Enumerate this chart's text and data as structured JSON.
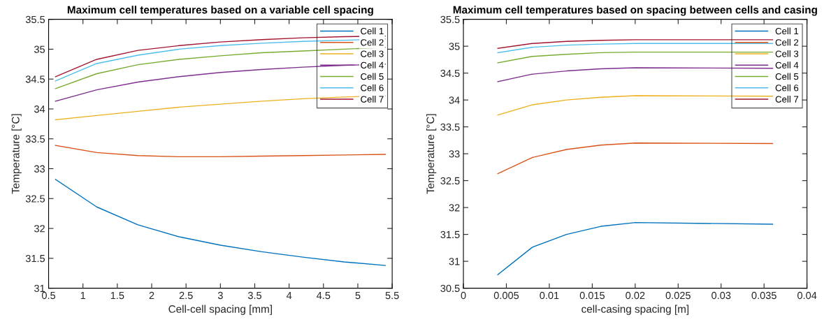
{
  "chart_data": [
    {
      "type": "line",
      "title": "Maximum cell temperatures based on a variable cell spacing",
      "xlabel": "Cell-cell spacing [mm]",
      "ylabel": "Temperature [°C]",
      "x": [
        0.6,
        1.2,
        1.8,
        2.4,
        3.0,
        3.6,
        4.2,
        4.8,
        5.4
      ],
      "series": [
        {
          "name": "Cell 1",
          "color": "#0072bd",
          "values": [
            32.82,
            32.36,
            32.06,
            31.86,
            31.72,
            31.61,
            31.52,
            31.44,
            31.38
          ]
        },
        {
          "name": "Cell 2",
          "color": "#d95319",
          "values": [
            33.39,
            33.27,
            33.22,
            33.2,
            33.2,
            33.21,
            33.22,
            33.23,
            33.24
          ]
        },
        {
          "name": "Cell 3",
          "color": "#edb120",
          "values": [
            33.82,
            33.89,
            33.96,
            34.03,
            34.08,
            34.13,
            34.17,
            34.2,
            34.22
          ]
        },
        {
          "name": "Cell 4",
          "color": "#7e2f8e",
          "values": [
            34.13,
            34.32,
            34.45,
            34.54,
            34.61,
            34.66,
            34.7,
            34.73,
            34.75
          ]
        },
        {
          "name": "Cell 5",
          "color": "#77ac30",
          "values": [
            34.34,
            34.59,
            34.74,
            34.83,
            34.89,
            34.94,
            34.97,
            35.0,
            35.03
          ]
        },
        {
          "name": "Cell 6",
          "color": "#4dbeee",
          "values": [
            34.47,
            34.76,
            34.9,
            35.0,
            35.06,
            35.1,
            35.13,
            35.15,
            35.17
          ]
        },
        {
          "name": "Cell 7",
          "color": "#a2142f",
          "values": [
            34.54,
            34.83,
            34.98,
            35.06,
            35.12,
            35.16,
            35.19,
            35.21,
            35.22
          ]
        }
      ],
      "xlim": [
        0.5,
        5.5
      ],
      "xticks": [
        0.5,
        1,
        1.5,
        2,
        2.5,
        3,
        3.5,
        4,
        4.5,
        5,
        5.5
      ],
      "ylim": [
        31,
        35.5
      ],
      "yticks": [
        31,
        31.5,
        32,
        32.5,
        33,
        33.5,
        34,
        34.5,
        35,
        35.5
      ],
      "grid": false,
      "legend": "top right",
      "marker": "none",
      "line_style": "solid"
    },
    {
      "type": "line",
      "title": "Maximum cell temperatures based on spacing between cells and casing",
      "xlabel": "cell-casing spacing [m]",
      "ylabel": "Temperature [°C]",
      "x": [
        0.004,
        0.008,
        0.012,
        0.016,
        0.02,
        0.036
      ],
      "series": [
        {
          "name": "Cell 1",
          "color": "#0072bd",
          "values": [
            30.75,
            31.26,
            31.5,
            31.65,
            31.72,
            31.69
          ]
        },
        {
          "name": "Cell 2",
          "color": "#d95319",
          "values": [
            32.63,
            32.93,
            33.08,
            33.16,
            33.2,
            33.19
          ]
        },
        {
          "name": "Cell 3",
          "color": "#edb120",
          "values": [
            33.72,
            33.91,
            34.0,
            34.05,
            34.08,
            34.07
          ]
        },
        {
          "name": "Cell 4",
          "color": "#7e2f8e",
          "values": [
            34.34,
            34.48,
            34.54,
            34.58,
            34.6,
            34.59
          ]
        },
        {
          "name": "Cell 5",
          "color": "#77ac30",
          "values": [
            34.69,
            34.81,
            34.85,
            34.88,
            34.89,
            34.89
          ]
        },
        {
          "name": "Cell 6",
          "color": "#4dbeee",
          "values": [
            34.88,
            34.98,
            35.02,
            35.04,
            35.05,
            35.05
          ]
        },
        {
          "name": "Cell 7",
          "color": "#a2142f",
          "values": [
            34.96,
            35.05,
            35.09,
            35.11,
            35.12,
            35.12
          ]
        }
      ],
      "xlim": [
        0,
        0.04
      ],
      "xticks": [
        0,
        0.005,
        0.01,
        0.015,
        0.02,
        0.025,
        0.03,
        0.035,
        0.04
      ],
      "ylim": [
        30.5,
        35.5
      ],
      "yticks": [
        30.5,
        31,
        31.5,
        32,
        32.5,
        33,
        33.5,
        34,
        34.5,
        35,
        35.5
      ],
      "grid": false,
      "legend": "top right",
      "marker": "none",
      "line_style": "solid"
    }
  ]
}
